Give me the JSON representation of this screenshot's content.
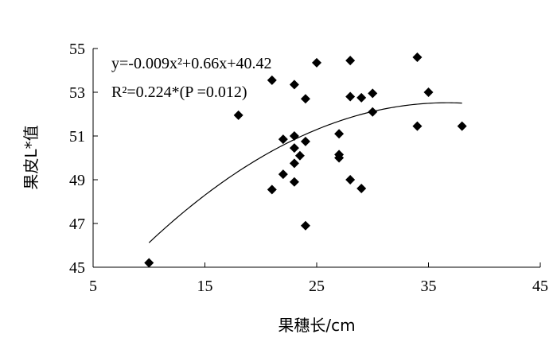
{
  "chart_data": {
    "type": "scatter",
    "xlabel": "果穗长/cm",
    "ylabel": "果皮L*值",
    "xlim": [
      5,
      45
    ],
    "ylim": [
      45,
      55
    ],
    "xticks": [
      5,
      15,
      25,
      35,
      45
    ],
    "yticks": [
      45,
      47,
      49,
      51,
      53,
      55
    ],
    "grid": false,
    "annotations": {
      "equation": "y=-0.009x²+0.66x+40.42",
      "r2": "R²=0.224*(P =0.012)"
    },
    "trendline": {
      "type": "polynomial",
      "coefficients": {
        "a": -0.009,
        "b": 0.66,
        "c": 40.42
      },
      "x_range": [
        10,
        38
      ]
    },
    "points": [
      {
        "x": 10,
        "y": 45.2
      },
      {
        "x": 18,
        "y": 51.95
      },
      {
        "x": 21,
        "y": 53.55
      },
      {
        "x": 21,
        "y": 48.55
      },
      {
        "x": 22,
        "y": 50.85
      },
      {
        "x": 22,
        "y": 49.25
      },
      {
        "x": 23,
        "y": 53.35
      },
      {
        "x": 23,
        "y": 51.0
      },
      {
        "x": 23,
        "y": 50.45
      },
      {
        "x": 23,
        "y": 49.75
      },
      {
        "x": 23,
        "y": 48.9
      },
      {
        "x": 23.5,
        "y": 50.1
      },
      {
        "x": 24,
        "y": 52.7
      },
      {
        "x": 24,
        "y": 50.75
      },
      {
        "x": 24,
        "y": 46.9
      },
      {
        "x": 25,
        "y": 54.35
      },
      {
        "x": 27,
        "y": 51.1
      },
      {
        "x": 27,
        "y": 50.15
      },
      {
        "x": 27,
        "y": 50.0
      },
      {
        "x": 28,
        "y": 54.45
      },
      {
        "x": 28,
        "y": 52.8
      },
      {
        "x": 28,
        "y": 49.0
      },
      {
        "x": 29,
        "y": 52.75
      },
      {
        "x": 29,
        "y": 48.6
      },
      {
        "x": 30,
        "y": 52.95
      },
      {
        "x": 30,
        "y": 52.1
      },
      {
        "x": 34,
        "y": 54.6
      },
      {
        "x": 34,
        "y": 51.45
      },
      {
        "x": 35,
        "y": 53.0
      },
      {
        "x": 38,
        "y": 51.45
      }
    ]
  }
}
